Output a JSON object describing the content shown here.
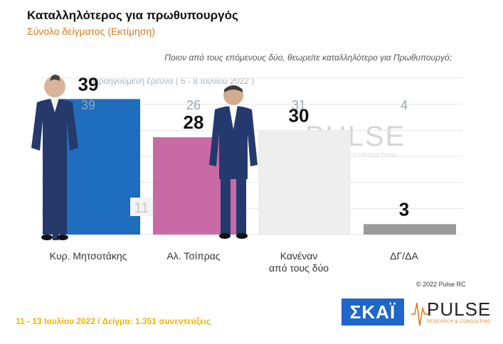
{
  "header": {
    "title": "Καταλληλότερος για πρωθυπουργός",
    "subtitle": "Σύνολο δείγματος   (Εκτίμηση)",
    "question": "Ποιον από τους επόμενους δύο, θεωρείτε καταλληλότερο για Πρωθυπουργό;",
    "previous_survey": "Προηγούμενη έρευνα   ( 6 - 8 Ιουνίου  2022 )"
  },
  "chart_data": {
    "type": "bar",
    "categories": [
      [
        "Κυρ. Μητσοτάκης"
      ],
      [
        "Αλ. Τσίπρας"
      ],
      [
        "Κανέναν",
        "από τους δύο"
      ],
      [
        "ΔΓ/ΔΑ"
      ]
    ],
    "values": [
      39,
      28,
      30,
      3
    ],
    "previous_values": [
      39,
      26,
      31,
      4
    ],
    "difference_label": {
      "value": "11"
    },
    "colors": [
      "#1f6dbf",
      "#c96aa6",
      "#eeeeee",
      "#9a9a9a"
    ],
    "ylim": [
      0,
      45
    ],
    "grid": true
  },
  "watermark": {
    "word": "PULSE",
    "sub": "RESEARCH & CONSULTING"
  },
  "copyright": "© 2022 Pulse RC",
  "footer": "11 - 13  Ιουλίου  2022  /  Δείγμα:  1.351 συνεντεύξεις",
  "logos": {
    "skai": "ΣΚΑΪ",
    "pulse": "PULSE",
    "pulse_sub": "RESEARCH & CONSULTING"
  }
}
